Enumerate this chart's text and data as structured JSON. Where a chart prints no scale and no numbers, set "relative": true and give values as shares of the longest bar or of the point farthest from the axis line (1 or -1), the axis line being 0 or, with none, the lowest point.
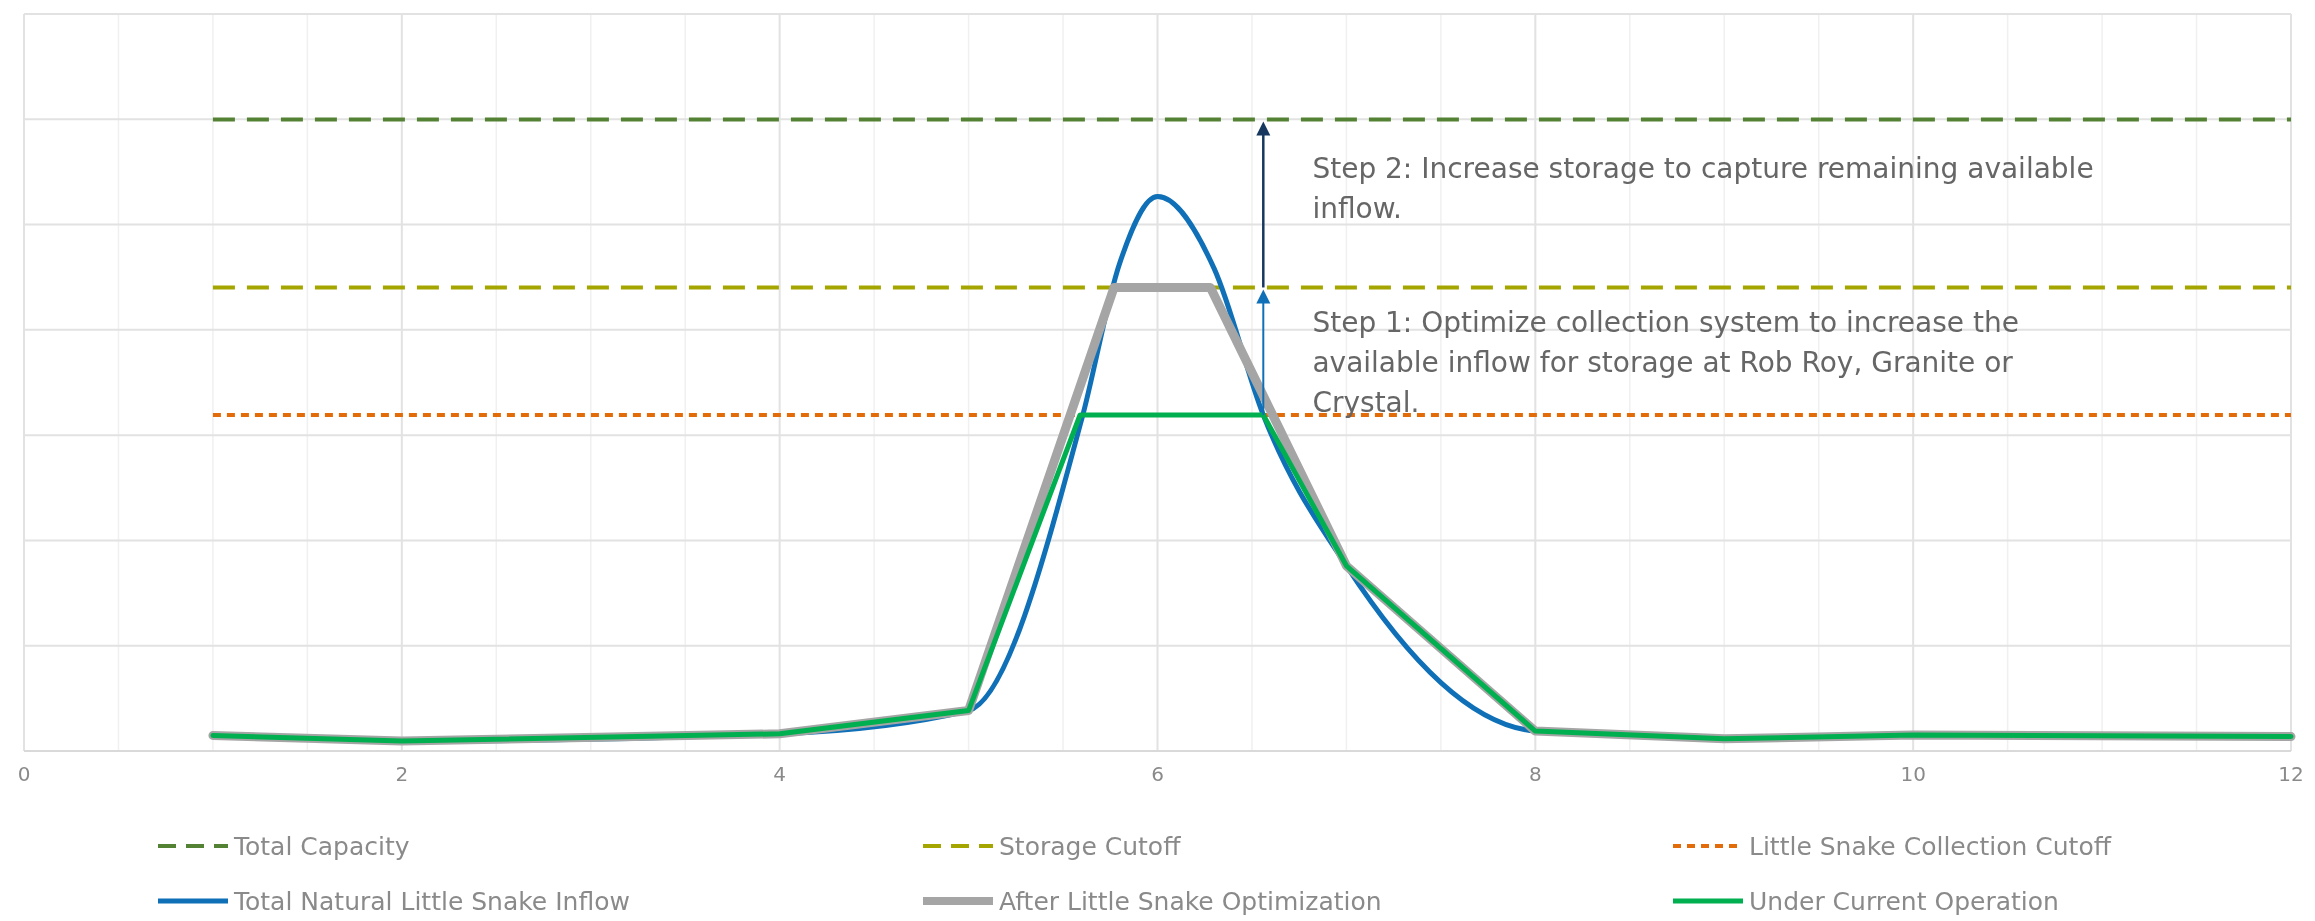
{
  "chart_data": {
    "type": "line",
    "relative": true,
    "xlim": [
      0,
      12
    ],
    "xticks": [
      0,
      2,
      4,
      6,
      8,
      10,
      12
    ],
    "grid": true,
    "legend": "bottom",
    "series": [
      {
        "name": "Total Natural Little Snake Inflow",
        "color": "#0f70b7",
        "x": [
          1,
          2,
          4,
          5,
          5.6,
          5.8,
          6,
          6.3,
          6.56,
          7,
          8,
          9
        ],
        "values": [
          0.028,
          0.018,
          0.031,
          0.073,
          0.6,
          0.88,
          1.0,
          0.87,
          0.606,
          0.334,
          0.036,
          0.022
        ]
      },
      {
        "name": "After Little Snake Optimization",
        "color": "#a5a5a5",
        "x": [
          1,
          2,
          4,
          5,
          5.77,
          6.28,
          7,
          8,
          9,
          10,
          12
        ],
        "values": [
          0.028,
          0.018,
          0.031,
          0.073,
          0.836,
          0.836,
          0.334,
          0.036,
          0.022,
          0.029,
          0.026
        ]
      },
      {
        "name": "Under Current Operation",
        "color": "#00b050",
        "x": [
          1,
          2,
          4,
          5,
          5.59,
          6.56,
          7,
          8,
          9,
          10,
          12
        ],
        "values": [
          0.028,
          0.018,
          0.031,
          0.073,
          0.606,
          0.606,
          0.334,
          0.036,
          0.022,
          0.029,
          0.026
        ]
      }
    ],
    "ref_lines": [
      {
        "axis": "y",
        "value": 1.139,
        "label": "Total Capacity",
        "color": "#548235",
        "line_style": "dashed"
      },
      {
        "axis": "y",
        "value": 0.836,
        "label": "Storage Cutoff",
        "color": "#a5a500",
        "line_style": "dashed"
      },
      {
        "axis": "y",
        "value": 0.606,
        "label": "Little Snake Collection Cutoff",
        "color": "#e36c0a",
        "line_style": "dotted"
      }
    ],
    "annotations": [
      "Step 2: Increase storage to capture remaining available inflow.",
      "Step 1: Optimize collection system to increase the available inflow for storage at Rob Roy, Granite or Crystal."
    ]
  }
}
